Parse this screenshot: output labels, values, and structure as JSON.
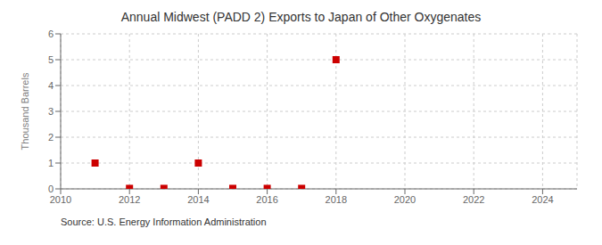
{
  "chart_data": {
    "type": "scatter",
    "title": "Annual Midwest (PADD 2) Exports to Japan of Other Oxygenates",
    "ylabel": "Thousand Barrels",
    "annotations": [
      "Source: U.S. Energy Information Administration"
    ],
    "x": [
      2011,
      2012,
      2013,
      2014,
      2015,
      2016,
      2017,
      2018
    ],
    "values": [
      1,
      0.02,
      0.02,
      1,
      0.02,
      0.02,
      0.02,
      5
    ],
    "color": "#cc0000",
    "marker": "square",
    "xlim": [
      2010,
      2025
    ],
    "ylim": [
      0,
      6
    ],
    "xticks": [
      2010,
      2012,
      2014,
      2016,
      2018,
      2020,
      2022,
      2024
    ],
    "yticks": [
      0,
      1,
      2,
      3,
      4,
      5,
      6
    ],
    "grid": true
  }
}
